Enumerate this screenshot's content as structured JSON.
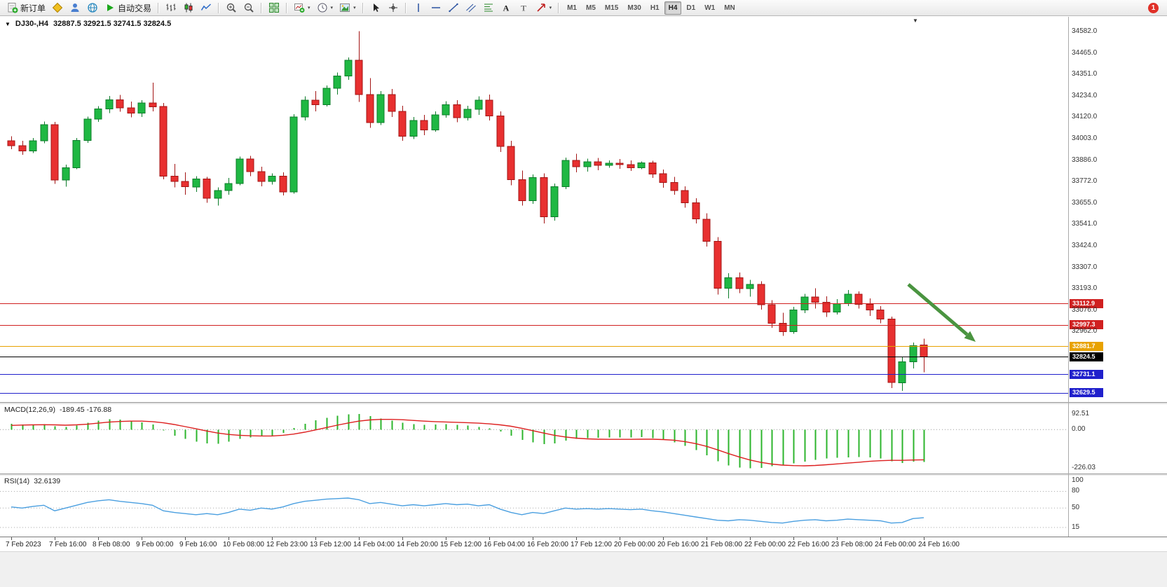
{
  "toolbar": {
    "new_order_label": "新订单",
    "auto_trading_label": "自动交易",
    "timeframes": [
      "M1",
      "M5",
      "M15",
      "M30",
      "H1",
      "H4",
      "D1",
      "W1",
      "MN"
    ],
    "active_timeframe": "H4",
    "badge": "1"
  },
  "header": {
    "symbol": "DJ30-,H4",
    "ohlc": "32887.5 32921.5 32741.5 32824.5"
  },
  "colors": {
    "candle_up": "#1fb843",
    "candle_up_border": "#0c7c2a",
    "candle_down": "#e83030",
    "candle_down_border": "#a31515",
    "macd_hist": "#2cb52c",
    "macd_signal": "#dd2020",
    "rsi_line": "#4a9fe0",
    "arrow": "#4a9440",
    "level_red": "#d02020",
    "level_gold": "#e8a200",
    "level_blue": "#2020cc",
    "level_black": "#000000"
  },
  "chart_data": {
    "type": "candlestick",
    "title": "DJ30-,H4",
    "grid": false,
    "current_ohlc": {
      "open": 32887.5,
      "high": 32921.5,
      "low": 32741.5,
      "close": 32824.5
    },
    "price_range": [
      32580,
      34660
    ],
    "price_ticks": [
      "34582.0",
      "34465.0",
      "34351.0",
      "34234.0",
      "34120.0",
      "34003.0",
      "33886.0",
      "33772.0",
      "33655.0",
      "33541.0",
      "33424.0",
      "33307.0",
      "33193.0",
      "33076.0",
      "32962.0"
    ],
    "levels": [
      {
        "price": 33112.9,
        "label": "33112.9",
        "color_key": "level_red"
      },
      {
        "price": 32997.3,
        "label": "32997.3",
        "color_key": "level_red"
      },
      {
        "price": 32881.7,
        "label": "32881.7",
        "color_key": "level_gold"
      },
      {
        "price": 32824.5,
        "label": "32824.5",
        "color_key": "level_black",
        "current": true
      },
      {
        "price": 32731.1,
        "label": "32731.1",
        "color_key": "level_blue"
      },
      {
        "price": 32629.5,
        "label": "32629.5",
        "color_key": "level_blue"
      }
    ],
    "annotation_arrow": {
      "from": [
        1296,
        382
      ],
      "to": [
        1392,
        464
      ]
    },
    "candles": [
      [
        33990,
        34015,
        33945,
        33965
      ],
      [
        33965,
        33990,
        33915,
        33935
      ],
      [
        33935,
        34005,
        33925,
        33990
      ],
      [
        33990,
        34095,
        33978,
        34078
      ],
      [
        34078,
        34092,
        33758,
        33778
      ],
      [
        33778,
        33862,
        33742,
        33845
      ],
      [
        33845,
        34005,
        33838,
        33992
      ],
      [
        33992,
        34122,
        33980,
        34108
      ],
      [
        34108,
        34178,
        34092,
        34162
      ],
      [
        34162,
        34232,
        34140,
        34212
      ],
      [
        34212,
        34238,
        34148,
        34168
      ],
      [
        34168,
        34202,
        34118,
        34140
      ],
      [
        34140,
        34210,
        34120,
        34195
      ],
      [
        34195,
        34305,
        34150,
        34175
      ],
      [
        34175,
        34195,
        33782,
        33800
      ],
      [
        33800,
        33865,
        33740,
        33772
      ],
      [
        33772,
        33820,
        33700,
        33742
      ],
      [
        33742,
        33800,
        33715,
        33785
      ],
      [
        33785,
        33795,
        33655,
        33680
      ],
      [
        33680,
        33740,
        33640,
        33722
      ],
      [
        33722,
        33790,
        33700,
        33760
      ],
      [
        33760,
        33905,
        33750,
        33892
      ],
      [
        33892,
        33910,
        33800,
        33825
      ],
      [
        33825,
        33850,
        33745,
        33772
      ],
      [
        33772,
        33815,
        33755,
        33800
      ],
      [
        33800,
        33820,
        33695,
        33715
      ],
      [
        33715,
        34135,
        33705,
        34120
      ],
      [
        34120,
        34230,
        34100,
        34210
      ],
      [
        34210,
        34260,
        34150,
        34185
      ],
      [
        34185,
        34290,
        34175,
        34275
      ],
      [
        34275,
        34360,
        34240,
        34340
      ],
      [
        34340,
        34440,
        34320,
        34425
      ],
      [
        34425,
        34582,
        34200,
        34240
      ],
      [
        34240,
        34330,
        34060,
        34090
      ],
      [
        34090,
        34260,
        34075,
        34240
      ],
      [
        34240,
        34270,
        34120,
        34150
      ],
      [
        34150,
        34180,
        33990,
        34015
      ],
      [
        34015,
        34120,
        34000,
        34100
      ],
      [
        34100,
        34130,
        34020,
        34050
      ],
      [
        34050,
        34150,
        34040,
        34130
      ],
      [
        34130,
        34205,
        34115,
        34185
      ],
      [
        34185,
        34210,
        34090,
        34115
      ],
      [
        34115,
        34180,
        34100,
        34160
      ],
      [
        34160,
        34230,
        34130,
        34210
      ],
      [
        34210,
        34240,
        34100,
        34125
      ],
      [
        34125,
        34150,
        33930,
        33960
      ],
      [
        33960,
        33990,
        33750,
        33780
      ],
      [
        33780,
        33830,
        33640,
        33668
      ],
      [
        33668,
        33810,
        33650,
        33792
      ],
      [
        33792,
        33815,
        33545,
        33580
      ],
      [
        33580,
        33760,
        33560,
        33742
      ],
      [
        33742,
        33900,
        33730,
        33885
      ],
      [
        33885,
        33920,
        33820,
        33850
      ],
      [
        33850,
        33895,
        33825,
        33878
      ],
      [
        33878,
        33898,
        33832,
        33858
      ],
      [
        33858,
        33885,
        33845,
        33870
      ],
      [
        33870,
        33892,
        33840,
        33862
      ],
      [
        33862,
        33884,
        33828,
        33845
      ],
      [
        33845,
        33880,
        33838,
        33872
      ],
      [
        33872,
        33882,
        33790,
        33812
      ],
      [
        33812,
        33835,
        33738,
        33765
      ],
      [
        33765,
        33795,
        33700,
        33722
      ],
      [
        33722,
        33745,
        33630,
        33655
      ],
      [
        33655,
        33680,
        33545,
        33568
      ],
      [
        33568,
        33600,
        33420,
        33448
      ],
      [
        33448,
        33470,
        33160,
        33195
      ],
      [
        33195,
        33275,
        33140,
        33252
      ],
      [
        33252,
        33280,
        33168,
        33192
      ],
      [
        33192,
        33240,
        33150,
        33215
      ],
      [
        33215,
        33232,
        33080,
        33105
      ],
      [
        33105,
        33130,
        32980,
        33005
      ],
      [
        33005,
        33062,
        32938,
        32960
      ],
      [
        32960,
        33095,
        32948,
        33078
      ],
      [
        33078,
        33165,
        33060,
        33148
      ],
      [
        33148,
        33195,
        33085,
        33118
      ],
      [
        33118,
        33152,
        33040,
        33065
      ],
      [
        33065,
        33135,
        33052,
        33112
      ],
      [
        33112,
        33185,
        33098,
        33162
      ],
      [
        33162,
        33178,
        33085,
        33108
      ],
      [
        33108,
        33140,
        33045,
        33078
      ],
      [
        33078,
        33098,
        33005,
        33028
      ],
      [
        33028,
        33042,
        32655,
        32685
      ],
      [
        32685,
        32825,
        32640,
        32798
      ],
      [
        32798,
        32902,
        32762,
        32885
      ],
      [
        32887.5,
        32921.5,
        32741.5,
        32824.5
      ]
    ],
    "time_labels": [
      {
        "idx": 0,
        "text": "7 Feb 2023"
      },
      {
        "idx": 4,
        "text": "7 Feb 16:00"
      },
      {
        "idx": 8,
        "text": "8 Feb 08:00"
      },
      {
        "idx": 12,
        "text": "9 Feb 00:00"
      },
      {
        "idx": 16,
        "text": "9 Feb 16:00"
      },
      {
        "idx": 20,
        "text": "10 Feb 08:00"
      },
      {
        "idx": 24,
        "text": "12 Feb 23:00"
      },
      {
        "idx": 28,
        "text": "13 Feb 12:00"
      },
      {
        "idx": 32,
        "text": "14 Feb 04:00"
      },
      {
        "idx": 36,
        "text": "14 Feb 20:00"
      },
      {
        "idx": 40,
        "text": "15 Feb 12:00"
      },
      {
        "idx": 44,
        "text": "16 Feb 04:00"
      },
      {
        "idx": 48,
        "text": "16 Feb 20:00"
      },
      {
        "idx": 52,
        "text": "17 Feb 12:00"
      },
      {
        "idx": 56,
        "text": "20 Feb 00:00"
      },
      {
        "idx": 60,
        "text": "20 Feb 16:00"
      },
      {
        "idx": 64,
        "text": "21 Feb 08:00"
      },
      {
        "idx": 68,
        "text": "22 Feb 00:00"
      },
      {
        "idx": 72,
        "text": "22 Feb 16:00"
      },
      {
        "idx": 76,
        "text": "23 Feb 08:00"
      },
      {
        "idx": 80,
        "text": "24 Feb 00:00"
      },
      {
        "idx": 84,
        "text": "24 Feb 16:00"
      }
    ],
    "macd": {
      "label": "MACD(12,26,9)",
      "values": "-189.45 -176.88",
      "range": [
        -245,
        100
      ],
      "scale_ticks": [
        "92.51",
        "0.00",
        "-226.03"
      ],
      "hist": [
        35,
        30,
        28,
        32,
        20,
        15,
        25,
        40,
        52,
        60,
        58,
        50,
        42,
        30,
        -5,
        -35,
        -55,
        -70,
        -80,
        -82,
        -70,
        -55,
        -45,
        -40,
        -35,
        -20,
        10,
        35,
        55,
        70,
        82,
        90,
        92.51,
        80,
        65,
        52,
        40,
        32,
        28,
        30,
        33,
        28,
        25,
        15,
        8,
        -10,
        -35,
        -60,
        -75,
        -85,
        -80,
        -65,
        -55,
        -50,
        -48,
        -46,
        -45,
        -46,
        -44,
        -50,
        -60,
        -75,
        -95,
        -120,
        -150,
        -185,
        -210,
        -222,
        -226.03,
        -224,
        -215,
        -205,
        -198,
        -188,
        -178,
        -170,
        -165,
        -162,
        -160,
        -162,
        -168,
        -185,
        -195,
        -188,
        -189.45
      ],
      "signal": [
        25,
        27,
        28,
        29,
        28,
        26,
        28,
        32,
        38,
        44,
        48,
        50,
        50,
        47,
        40,
        30,
        18,
        5,
        -8,
        -20,
        -28,
        -33,
        -36,
        -37,
        -37,
        -33,
        -26,
        -15,
        -2,
        12,
        26,
        39,
        50,
        57,
        60,
        60,
        58,
        54,
        50,
        47,
        45,
        43,
        41,
        38,
        34,
        28,
        20,
        8,
        -6,
        -20,
        -33,
        -43,
        -50,
        -54,
        -56,
        -57,
        -57,
        -57,
        -56,
        -56,
        -58,
        -62,
        -70,
        -82,
        -98,
        -118,
        -140,
        -160,
        -178,
        -192,
        -202,
        -208,
        -211,
        -212,
        -210,
        -206,
        -201,
        -196,
        -191,
        -186,
        -182,
        -180,
        -180,
        -178,
        -176.88
      ]
    },
    "rsi": {
      "label": "RSI(14)",
      "value": "32.6139",
      "range": [
        10,
        102
      ],
      "scale_ticks": [
        "100",
        "80",
        "50",
        "15"
      ],
      "levels": [
        80,
        50,
        15
      ],
      "values": [
        52,
        50,
        53,
        55,
        45,
        50,
        55,
        60,
        63,
        65,
        62,
        60,
        58,
        55,
        45,
        42,
        40,
        38,
        40,
        38,
        42,
        48,
        46,
        50,
        48,
        52,
        58,
        62,
        64,
        66,
        67,
        68,
        65,
        58,
        60,
        57,
        54,
        56,
        54,
        56,
        58,
        56,
        57,
        54,
        56,
        48,
        42,
        38,
        42,
        40,
        45,
        50,
        48,
        49,
        48,
        49,
        48,
        47,
        48,
        45,
        43,
        40,
        37,
        34,
        31,
        28,
        27,
        29,
        28,
        26,
        24,
        23,
        26,
        28,
        29,
        27,
        28,
        30,
        29,
        28,
        27,
        23,
        24,
        31,
        32.61
      ]
    }
  }
}
